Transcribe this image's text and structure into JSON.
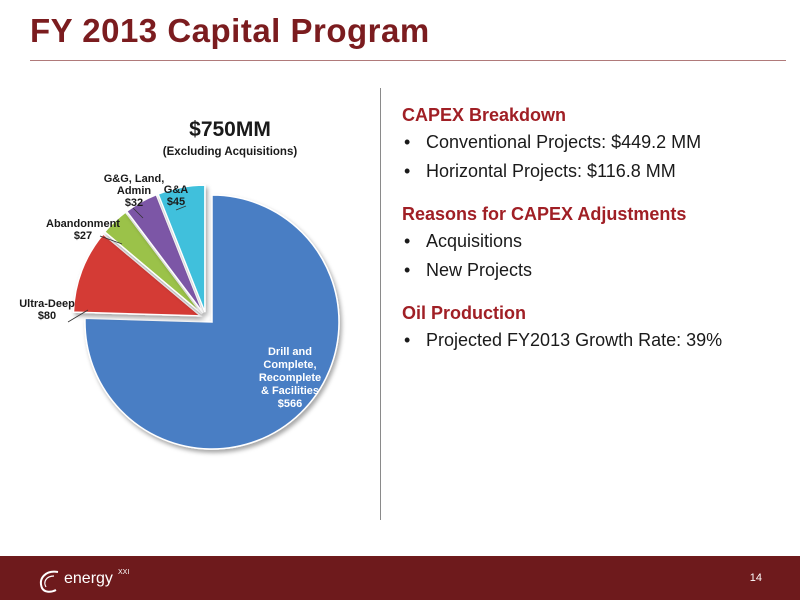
{
  "slide": {
    "title": "FY 2013 Capital Program",
    "page_number": "14"
  },
  "logo": {
    "text": "energy",
    "superscript": "XXI"
  },
  "chart_data": {
    "type": "pie",
    "title": "$750MM",
    "subtitle": "(Excluding Acquisitions)",
    "slices": [
      {
        "lines": [
          "Drill and",
          "Complete,",
          "Recomplete",
          "& Facilities",
          "$566"
        ],
        "value": 566,
        "color": "#4a7ec4",
        "exploded": false
      },
      {
        "lines": [
          "Ultra-Deep",
          "$80"
        ],
        "value": 80,
        "color": "#d43a36",
        "exploded": true
      },
      {
        "lines": [
          "Abandonment",
          "$27"
        ],
        "value": 27,
        "color": "#9bc24a",
        "exploded": true
      },
      {
        "lines": [
          "G&G, Land,",
          "Admin",
          "$32"
        ],
        "value": 32,
        "color": "#7b57a6",
        "exploded": true
      },
      {
        "lines": [
          "G&A",
          "$45"
        ],
        "value": 45,
        "color": "#3fc0dc",
        "exploded": true
      }
    ]
  },
  "sections": [
    {
      "heading": "CAPEX Breakdown",
      "bullets": [
        "Conventional Projects:  $449.2 MM",
        "Horizontal Projects: $116.8 MM"
      ]
    },
    {
      "heading": "Reasons for CAPEX Adjustments",
      "bullets": [
        "Acquisitions",
        "New Projects"
      ]
    },
    {
      "heading": "Oil Production",
      "bullets": [
        "Projected FY2013 Growth Rate: 39%"
      ]
    }
  ]
}
